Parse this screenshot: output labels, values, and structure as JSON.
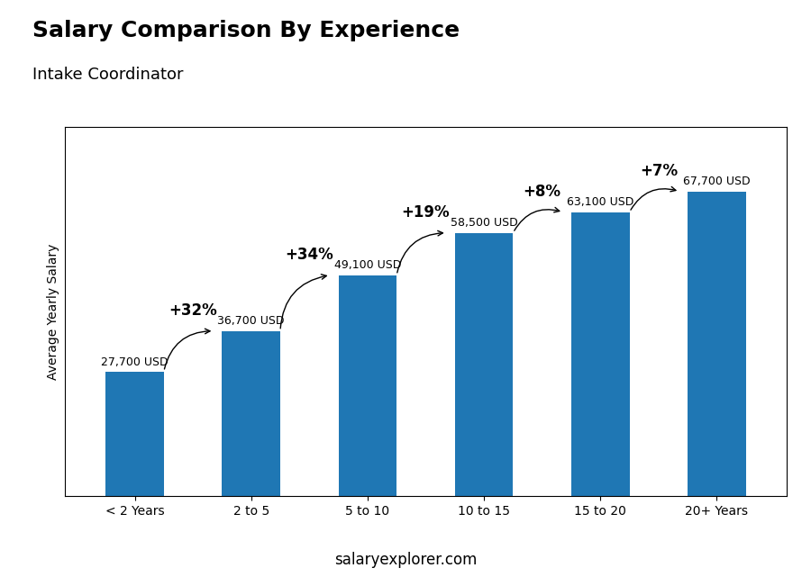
{
  "chart_data": {
    "type": "bar",
    "title": "Salary Comparison By Experience",
    "subtitle": "Intake Coordinator",
    "ylabel": "Average Yearly Salary",
    "categories": [
      "< 2 Years",
      "2 to 5",
      "5 to 10",
      "10 to 15",
      "15 to 20",
      "20+ Years"
    ],
    "values": [
      27700,
      36700,
      49100,
      58500,
      63100,
      67700
    ],
    "value_labels": [
      "27,700 USD",
      "36,700 USD",
      "49,100 USD",
      "58,500 USD",
      "63,100 USD",
      "67,700 USD"
    ],
    "data_labels": true,
    "ylim": [
      0,
      82000
    ],
    "tick_labels": "x",
    "grid": false,
    "annotations": [
      {
        "text": "+32%",
        "from": "< 2 Years",
        "to": "2 to 5"
      },
      {
        "text": "+34%",
        "from": "2 to 5",
        "to": "5 to 10"
      },
      {
        "text": "+19%",
        "from": "5 to 10",
        "to": "10 to 15"
      },
      {
        "text": "+8%",
        "from": "10 to 15",
        "to": "15 to 20"
      },
      {
        "text": "+7%",
        "from": "15 to 20",
        "to": "20+ Years"
      }
    ],
    "credit": "salaryexplorer.com"
  }
}
